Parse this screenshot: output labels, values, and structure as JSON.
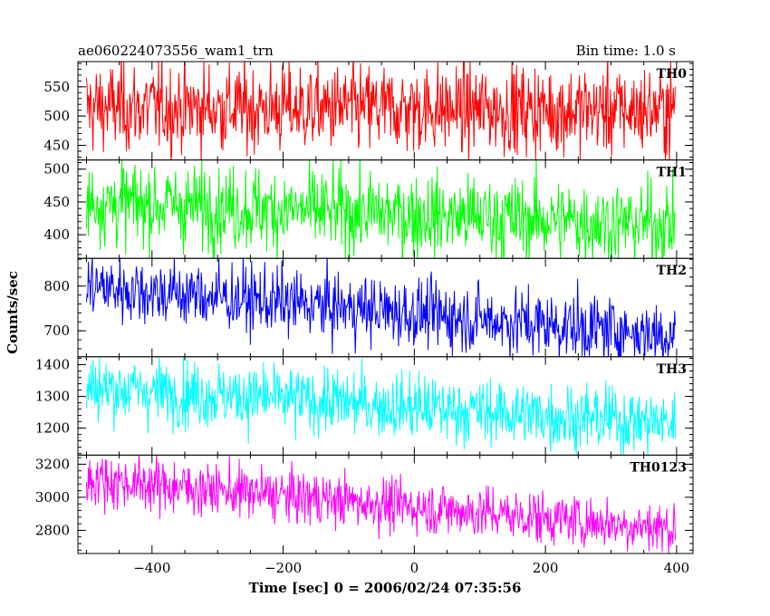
{
  "chart_data": {
    "type": "line",
    "title_left": "ae060224073556_wam1_trn",
    "title_right": "Bin time: 1.0 s",
    "xlabel": "Time [sec] 0 = 2006/02/24 07:35:56",
    "ylabel": "Counts/sec",
    "xlim": [
      -513,
      425
    ],
    "x_ticks": [
      -400,
      -200,
      0,
      200,
      400
    ],
    "x_range": [
      -500,
      398
    ],
    "bin_time_s": 1.0,
    "grid": false,
    "panels": [
      {
        "label": "TH0",
        "color": "#ff0000",
        "ylim": [
          425,
          593
        ],
        "ticks": [
          450,
          500,
          550
        ],
        "start_mean": 515,
        "end_mean": 510,
        "amplitude": 38
      },
      {
        "label": "TH1",
        "color": "#00ff00",
        "ylim": [
          364,
          514
        ],
        "ticks": [
          400,
          450,
          500
        ],
        "start_mean": 450,
        "end_mean": 415,
        "amplitude": 32
      },
      {
        "label": "TH2",
        "color": "#0000ff",
        "ylim": [
          642,
          862
        ],
        "ticks": [
          700,
          800
        ],
        "start_mean": 800,
        "end_mean": 690,
        "amplitude": 38
      },
      {
        "label": "TH3",
        "color": "#00ffff",
        "ylim": [
          1115,
          1425
        ],
        "ticks": [
          1200,
          1300,
          1400
        ],
        "start_mean": 1330,
        "end_mean": 1215,
        "amplitude": 52
      },
      {
        "label": "TH0123",
        "color": "#ff00ff",
        "ylim": [
          2660,
          3255
        ],
        "ticks": [
          2800,
          3000,
          3200
        ],
        "start_mean": 3110,
        "end_mean": 2810,
        "amplitude": 80
      }
    ]
  }
}
